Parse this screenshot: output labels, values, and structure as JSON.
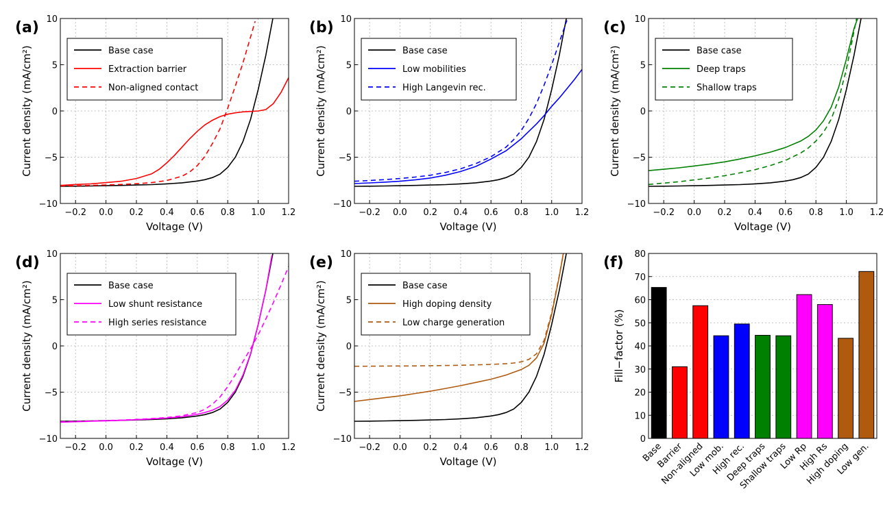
{
  "chart_data": [
    {
      "panel": "(a)",
      "type": "line",
      "xlabel": "Voltage (V)",
      "ylabel": "Current density (mA/cm²)",
      "xlim": [
        -0.3,
        1.2
      ],
      "ylim": [
        -10,
        10
      ],
      "xticks": [
        -0.2,
        0.0,
        0.2,
        0.4,
        0.6,
        0.8,
        1.0,
        1.2
      ],
      "yticks": [
        -10,
        -5,
        0,
        5,
        10
      ],
      "grid": true,
      "legend_position": "top-left",
      "series": [
        {
          "name": "Base case",
          "color": "#000000",
          "dash": false,
          "x": [
            -0.3,
            -0.2,
            -0.1,
            0.0,
            0.1,
            0.2,
            0.3,
            0.4,
            0.5,
            0.6,
            0.65,
            0.7,
            0.75,
            0.8,
            0.85,
            0.9,
            0.95,
            1.0,
            1.05,
            1.1
          ],
          "y": [
            -8.15,
            -8.13,
            -8.11,
            -8.08,
            -8.05,
            -8.01,
            -7.96,
            -7.88,
            -7.77,
            -7.58,
            -7.43,
            -7.2,
            -6.82,
            -6.1,
            -5.0,
            -3.3,
            -0.9,
            2.3,
            6.0,
            10.3
          ]
        },
        {
          "name": "Extraction barrier",
          "color": "#ff0000",
          "dash": false,
          "x": [
            -0.3,
            -0.2,
            -0.1,
            0.0,
            0.1,
            0.2,
            0.3,
            0.35,
            0.4,
            0.45,
            0.5,
            0.55,
            0.6,
            0.65,
            0.7,
            0.75,
            0.8,
            0.85,
            0.9,
            0.95,
            1.0,
            1.05,
            1.1,
            1.15,
            1.2
          ],
          "y": [
            -8.05,
            -7.95,
            -7.88,
            -7.75,
            -7.6,
            -7.3,
            -6.8,
            -6.3,
            -5.6,
            -4.8,
            -3.9,
            -3.0,
            -2.2,
            -1.5,
            -1.0,
            -0.6,
            -0.35,
            -0.2,
            -0.1,
            -0.05,
            0.0,
            0.15,
            0.8,
            2.0,
            3.6
          ]
        },
        {
          "name": "Non-aligned contact",
          "color": "#ff0000",
          "dash": true,
          "x": [
            -0.3,
            -0.2,
            -0.1,
            0.0,
            0.1,
            0.2,
            0.3,
            0.4,
            0.5,
            0.55,
            0.6,
            0.65,
            0.7,
            0.75,
            0.8,
            0.85,
            0.9,
            0.95,
            0.98
          ],
          "y": [
            -8.1,
            -8.08,
            -8.05,
            -8.0,
            -7.95,
            -7.87,
            -7.75,
            -7.52,
            -7.05,
            -6.6,
            -5.9,
            -4.9,
            -3.5,
            -1.9,
            0.3,
            2.7,
            5.2,
            8.0,
            9.7
          ]
        }
      ]
    },
    {
      "panel": "(b)",
      "type": "line",
      "xlabel": "Voltage (V)",
      "ylabel": "Current density (mA/cm²)",
      "xlim": [
        -0.3,
        1.2
      ],
      "ylim": [
        -10,
        10
      ],
      "xticks": [
        -0.2,
        0.0,
        0.2,
        0.4,
        0.6,
        0.8,
        1.0,
        1.2
      ],
      "yticks": [
        -10,
        -5,
        0,
        5,
        10
      ],
      "grid": true,
      "legend_position": "top-left",
      "series": [
        {
          "name": "Base case",
          "color": "#000000",
          "dash": false,
          "x": [
            -0.3,
            -0.2,
            -0.1,
            0.0,
            0.1,
            0.2,
            0.3,
            0.4,
            0.5,
            0.6,
            0.65,
            0.7,
            0.75,
            0.8,
            0.85,
            0.9,
            0.95,
            1.0,
            1.05,
            1.1
          ],
          "y": [
            -8.15,
            -8.13,
            -8.11,
            -8.08,
            -8.05,
            -8.01,
            -7.96,
            -7.88,
            -7.77,
            -7.58,
            -7.43,
            -7.2,
            -6.82,
            -6.1,
            -5.0,
            -3.3,
            -0.9,
            2.3,
            6.0,
            10.3
          ]
        },
        {
          "name": "Low mobilities",
          "color": "#0000ff",
          "dash": false,
          "x": [
            -0.3,
            -0.2,
            -0.1,
            0.0,
            0.1,
            0.2,
            0.3,
            0.4,
            0.5,
            0.6,
            0.7,
            0.8,
            0.85,
            0.9,
            0.95,
            1.0,
            1.05,
            1.1,
            1.15,
            1.2
          ],
          "y": [
            -7.85,
            -7.78,
            -7.7,
            -7.6,
            -7.45,
            -7.25,
            -6.95,
            -6.55,
            -6.0,
            -5.2,
            -4.3,
            -3.0,
            -2.2,
            -1.4,
            -0.5,
            0.5,
            1.4,
            2.4,
            3.4,
            4.5
          ]
        },
        {
          "name": "High Langevin rec.",
          "color": "#0000ff",
          "dash": true,
          "x": [
            -0.3,
            -0.2,
            -0.1,
            0.0,
            0.1,
            0.2,
            0.3,
            0.4,
            0.5,
            0.6,
            0.7,
            0.75,
            0.8,
            0.85,
            0.9,
            0.95,
            1.0,
            1.05,
            1.1
          ],
          "y": [
            -7.6,
            -7.52,
            -7.42,
            -7.3,
            -7.15,
            -6.95,
            -6.65,
            -6.25,
            -5.7,
            -4.95,
            -3.9,
            -3.1,
            -2.1,
            -0.8,
            0.8,
            2.8,
            5.0,
            7.4,
            9.8
          ]
        }
      ]
    },
    {
      "panel": "(c)",
      "type": "line",
      "xlabel": "Voltage (V)",
      "ylabel": "Current density (mA/cm²)",
      "xlim": [
        -0.3,
        1.2
      ],
      "ylim": [
        -10,
        10
      ],
      "xticks": [
        -0.2,
        0.0,
        0.2,
        0.4,
        0.6,
        0.8,
        1.0,
        1.2
      ],
      "yticks": [
        -10,
        -5,
        0,
        5,
        10
      ],
      "grid": true,
      "legend_position": "top-left",
      "series": [
        {
          "name": "Base case",
          "color": "#000000",
          "dash": false,
          "x": [
            -0.3,
            -0.2,
            -0.1,
            0.0,
            0.1,
            0.2,
            0.3,
            0.4,
            0.5,
            0.6,
            0.65,
            0.7,
            0.75,
            0.8,
            0.85,
            0.9,
            0.95,
            1.0,
            1.05,
            1.1
          ],
          "y": [
            -8.15,
            -8.13,
            -8.11,
            -8.08,
            -8.05,
            -8.01,
            -7.96,
            -7.88,
            -7.77,
            -7.58,
            -7.43,
            -7.2,
            -6.82,
            -6.1,
            -5.0,
            -3.3,
            -0.9,
            2.3,
            6.0,
            10.3
          ]
        },
        {
          "name": "Deep traps",
          "color": "#008000",
          "dash": false,
          "x": [
            -0.3,
            -0.2,
            -0.1,
            0.0,
            0.1,
            0.2,
            0.3,
            0.4,
            0.5,
            0.6,
            0.7,
            0.75,
            0.8,
            0.85,
            0.9,
            0.95,
            1.0,
            1.05,
            1.08
          ],
          "y": [
            -6.45,
            -6.3,
            -6.15,
            -5.95,
            -5.75,
            -5.5,
            -5.2,
            -4.85,
            -4.45,
            -3.95,
            -3.25,
            -2.75,
            -2.05,
            -1.05,
            0.4,
            2.6,
            5.6,
            8.9,
            10.3
          ]
        },
        {
          "name": "Shallow traps",
          "color": "#008000",
          "dash": true,
          "x": [
            -0.3,
            -0.2,
            -0.1,
            0.0,
            0.1,
            0.2,
            0.3,
            0.4,
            0.5,
            0.6,
            0.7,
            0.75,
            0.8,
            0.85,
            0.9,
            0.95,
            1.0,
            1.05,
            1.07
          ],
          "y": [
            -7.95,
            -7.8,
            -7.65,
            -7.45,
            -7.25,
            -7.0,
            -6.7,
            -6.35,
            -5.9,
            -5.35,
            -4.55,
            -4.0,
            -3.25,
            -2.3,
            -0.9,
            1.3,
            4.5,
            8.6,
            10.2
          ]
        }
      ]
    },
    {
      "panel": "(d)",
      "type": "line",
      "xlabel": "Voltage (V)",
      "ylabel": "Current density (mA/cm²)",
      "xlim": [
        -0.3,
        1.2
      ],
      "ylim": [
        -10,
        10
      ],
      "xticks": [
        -0.2,
        0.0,
        0.2,
        0.4,
        0.6,
        0.8,
        1.0,
        1.2
      ],
      "yticks": [
        -10,
        -5,
        0,
        5,
        10
      ],
      "grid": true,
      "legend_position": "top-left",
      "series": [
        {
          "name": "Base case",
          "color": "#000000",
          "dash": false,
          "x": [
            -0.3,
            -0.2,
            -0.1,
            0.0,
            0.1,
            0.2,
            0.3,
            0.4,
            0.5,
            0.6,
            0.65,
            0.7,
            0.75,
            0.8,
            0.85,
            0.9,
            0.95,
            1.0,
            1.05,
            1.1
          ],
          "y": [
            -8.15,
            -8.13,
            -8.11,
            -8.08,
            -8.05,
            -8.01,
            -7.96,
            -7.88,
            -7.77,
            -7.58,
            -7.43,
            -7.2,
            -6.82,
            -6.1,
            -5.0,
            -3.3,
            -0.9,
            2.3,
            6.0,
            10.3
          ]
        },
        {
          "name": "Low shunt resistance",
          "color": "#ff00ff",
          "dash": false,
          "x": [
            -0.3,
            -0.2,
            -0.1,
            0.0,
            0.1,
            0.2,
            0.3,
            0.4,
            0.5,
            0.6,
            0.65,
            0.7,
            0.75,
            0.8,
            0.85,
            0.9,
            0.95,
            1.0,
            1.05,
            1.09
          ],
          "y": [
            -8.25,
            -8.2,
            -8.15,
            -8.1,
            -8.05,
            -7.98,
            -7.9,
            -7.8,
            -7.65,
            -7.4,
            -7.2,
            -6.95,
            -6.55,
            -5.85,
            -4.8,
            -3.15,
            -0.85,
            2.3,
            6.0,
            9.8
          ]
        },
        {
          "name": "High series resistance",
          "color": "#ff00ff",
          "dash": true,
          "x": [
            -0.3,
            -0.2,
            -0.1,
            0.0,
            0.1,
            0.2,
            0.3,
            0.4,
            0.5,
            0.6,
            0.65,
            0.7,
            0.75,
            0.8,
            0.85,
            0.9,
            0.95,
            1.0,
            1.05,
            1.1,
            1.15,
            1.2
          ],
          "y": [
            -8.2,
            -8.16,
            -8.12,
            -8.07,
            -8.02,
            -7.95,
            -7.86,
            -7.74,
            -7.55,
            -7.2,
            -6.85,
            -6.3,
            -5.5,
            -4.4,
            -3.1,
            -1.7,
            -0.3,
            1.2,
            2.9,
            4.7,
            6.6,
            8.6
          ]
        }
      ]
    },
    {
      "panel": "(e)",
      "type": "line",
      "xlabel": "Voltage (V)",
      "ylabel": "Current density (mA/cm²)",
      "xlim": [
        -0.3,
        1.2
      ],
      "ylim": [
        -10,
        10
      ],
      "xticks": [
        -0.2,
        0.0,
        0.2,
        0.4,
        0.6,
        0.8,
        1.0,
        1.2
      ],
      "yticks": [
        -10,
        -5,
        0,
        5,
        10
      ],
      "grid": true,
      "legend_position": "top-left",
      "series": [
        {
          "name": "Base case",
          "color": "#000000",
          "dash": false,
          "x": [
            -0.3,
            -0.2,
            -0.1,
            0.0,
            0.1,
            0.2,
            0.3,
            0.4,
            0.5,
            0.6,
            0.65,
            0.7,
            0.75,
            0.8,
            0.85,
            0.9,
            0.95,
            1.0,
            1.05,
            1.1
          ],
          "y": [
            -8.15,
            -8.13,
            -8.11,
            -8.08,
            -8.05,
            -8.01,
            -7.96,
            -7.88,
            -7.77,
            -7.58,
            -7.43,
            -7.2,
            -6.82,
            -6.1,
            -5.0,
            -3.3,
            -0.9,
            2.3,
            6.0,
            10.3
          ]
        },
        {
          "name": "High doping density",
          "color": "#b05a10",
          "dash": false,
          "x": [
            -0.3,
            -0.2,
            -0.1,
            0.0,
            0.1,
            0.2,
            0.3,
            0.4,
            0.5,
            0.6,
            0.7,
            0.8,
            0.85,
            0.9,
            0.95,
            1.0,
            1.05,
            1.08
          ],
          "y": [
            -6.0,
            -5.8,
            -5.6,
            -5.4,
            -5.15,
            -4.9,
            -4.6,
            -4.3,
            -3.95,
            -3.6,
            -3.15,
            -2.55,
            -2.1,
            -1.3,
            0.3,
            3.4,
            7.5,
            10.3
          ]
        },
        {
          "name": "Low charge generation",
          "color": "#b05a10",
          "dash": true,
          "x": [
            -0.3,
            -0.2,
            -0.1,
            0.0,
            0.1,
            0.2,
            0.3,
            0.4,
            0.5,
            0.6,
            0.7,
            0.75,
            0.8,
            0.85,
            0.9,
            0.95,
            1.0,
            1.05,
            1.08
          ],
          "y": [
            -2.2,
            -2.19,
            -2.18,
            -2.17,
            -2.16,
            -2.14,
            -2.12,
            -2.09,
            -2.05,
            -2.0,
            -1.92,
            -1.85,
            -1.72,
            -1.45,
            -0.85,
            0.6,
            3.6,
            7.6,
            10.2
          ]
        }
      ]
    },
    {
      "panel": "(f)",
      "type": "bar",
      "ylabel": "Fill−factor (%)",
      "ylim": [
        0,
        80
      ],
      "yticks": [
        0,
        10,
        20,
        30,
        40,
        50,
        60,
        70,
        80
      ],
      "grid": true,
      "categories": [
        "Base",
        "Barrier",
        "Non-aligned",
        "Low mob.",
        "High rec.",
        "Deep traps",
        "Shallow traps",
        "Low Rp",
        "High Rs",
        "High doping",
        "Low gen."
      ],
      "values": [
        65.3,
        31.0,
        57.4,
        44.4,
        49.5,
        44.6,
        44.4,
        62.2,
        57.9,
        43.3,
        72.2
      ],
      "colors": [
        "#000000",
        "#ff0000",
        "#ff0000",
        "#0000ff",
        "#0000ff",
        "#008000",
        "#008000",
        "#ff00ff",
        "#ff00ff",
        "#b05a10",
        "#b05a10"
      ]
    }
  ]
}
